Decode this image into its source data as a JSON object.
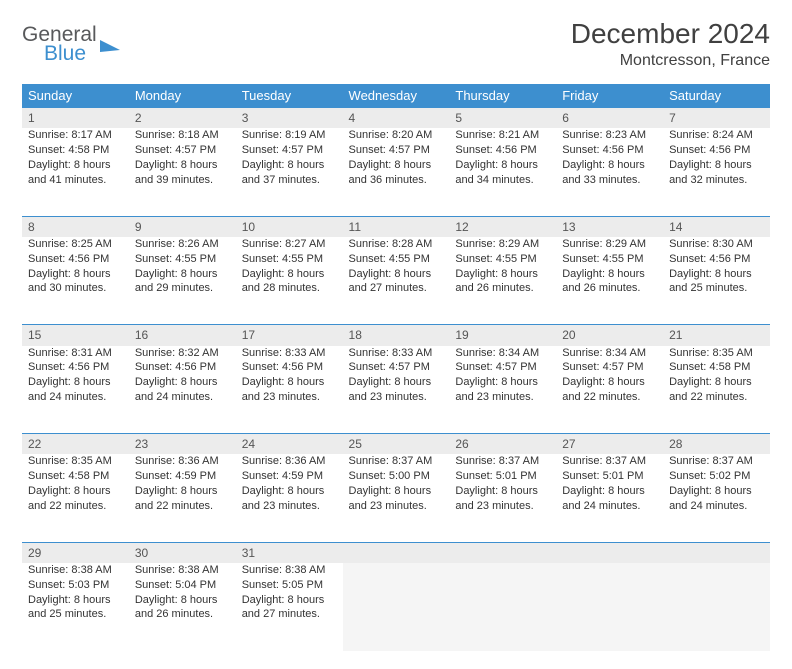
{
  "logo": {
    "text1": "General",
    "text2": "Blue"
  },
  "title": "December 2024",
  "location": "Montcresson, France",
  "header_color": "#3d8fcf",
  "daynum_bg": "#ececec",
  "border_color": "#3d8fcf",
  "weekdays": [
    "Sunday",
    "Monday",
    "Tuesday",
    "Wednesday",
    "Thursday",
    "Friday",
    "Saturday"
  ],
  "weeks": [
    [
      {
        "n": "1",
        "sr": "Sunrise: 8:17 AM",
        "ss": "Sunset: 4:58 PM",
        "d1": "Daylight: 8 hours",
        "d2": "and 41 minutes."
      },
      {
        "n": "2",
        "sr": "Sunrise: 8:18 AM",
        "ss": "Sunset: 4:57 PM",
        "d1": "Daylight: 8 hours",
        "d2": "and 39 minutes."
      },
      {
        "n": "3",
        "sr": "Sunrise: 8:19 AM",
        "ss": "Sunset: 4:57 PM",
        "d1": "Daylight: 8 hours",
        "d2": "and 37 minutes."
      },
      {
        "n": "4",
        "sr": "Sunrise: 8:20 AM",
        "ss": "Sunset: 4:57 PM",
        "d1": "Daylight: 8 hours",
        "d2": "and 36 minutes."
      },
      {
        "n": "5",
        "sr": "Sunrise: 8:21 AM",
        "ss": "Sunset: 4:56 PM",
        "d1": "Daylight: 8 hours",
        "d2": "and 34 minutes."
      },
      {
        "n": "6",
        "sr": "Sunrise: 8:23 AM",
        "ss": "Sunset: 4:56 PM",
        "d1": "Daylight: 8 hours",
        "d2": "and 33 minutes."
      },
      {
        "n": "7",
        "sr": "Sunrise: 8:24 AM",
        "ss": "Sunset: 4:56 PM",
        "d1": "Daylight: 8 hours",
        "d2": "and 32 minutes."
      }
    ],
    [
      {
        "n": "8",
        "sr": "Sunrise: 8:25 AM",
        "ss": "Sunset: 4:56 PM",
        "d1": "Daylight: 8 hours",
        "d2": "and 30 minutes."
      },
      {
        "n": "9",
        "sr": "Sunrise: 8:26 AM",
        "ss": "Sunset: 4:55 PM",
        "d1": "Daylight: 8 hours",
        "d2": "and 29 minutes."
      },
      {
        "n": "10",
        "sr": "Sunrise: 8:27 AM",
        "ss": "Sunset: 4:55 PM",
        "d1": "Daylight: 8 hours",
        "d2": "and 28 minutes."
      },
      {
        "n": "11",
        "sr": "Sunrise: 8:28 AM",
        "ss": "Sunset: 4:55 PM",
        "d1": "Daylight: 8 hours",
        "d2": "and 27 minutes."
      },
      {
        "n": "12",
        "sr": "Sunrise: 8:29 AM",
        "ss": "Sunset: 4:55 PM",
        "d1": "Daylight: 8 hours",
        "d2": "and 26 minutes."
      },
      {
        "n": "13",
        "sr": "Sunrise: 8:29 AM",
        "ss": "Sunset: 4:55 PM",
        "d1": "Daylight: 8 hours",
        "d2": "and 26 minutes."
      },
      {
        "n": "14",
        "sr": "Sunrise: 8:30 AM",
        "ss": "Sunset: 4:56 PM",
        "d1": "Daylight: 8 hours",
        "d2": "and 25 minutes."
      }
    ],
    [
      {
        "n": "15",
        "sr": "Sunrise: 8:31 AM",
        "ss": "Sunset: 4:56 PM",
        "d1": "Daylight: 8 hours",
        "d2": "and 24 minutes."
      },
      {
        "n": "16",
        "sr": "Sunrise: 8:32 AM",
        "ss": "Sunset: 4:56 PM",
        "d1": "Daylight: 8 hours",
        "d2": "and 24 minutes."
      },
      {
        "n": "17",
        "sr": "Sunrise: 8:33 AM",
        "ss": "Sunset: 4:56 PM",
        "d1": "Daylight: 8 hours",
        "d2": "and 23 minutes."
      },
      {
        "n": "18",
        "sr": "Sunrise: 8:33 AM",
        "ss": "Sunset: 4:57 PM",
        "d1": "Daylight: 8 hours",
        "d2": "and 23 minutes."
      },
      {
        "n": "19",
        "sr": "Sunrise: 8:34 AM",
        "ss": "Sunset: 4:57 PM",
        "d1": "Daylight: 8 hours",
        "d2": "and 23 minutes."
      },
      {
        "n": "20",
        "sr": "Sunrise: 8:34 AM",
        "ss": "Sunset: 4:57 PM",
        "d1": "Daylight: 8 hours",
        "d2": "and 22 minutes."
      },
      {
        "n": "21",
        "sr": "Sunrise: 8:35 AM",
        "ss": "Sunset: 4:58 PM",
        "d1": "Daylight: 8 hours",
        "d2": "and 22 minutes."
      }
    ],
    [
      {
        "n": "22",
        "sr": "Sunrise: 8:35 AM",
        "ss": "Sunset: 4:58 PM",
        "d1": "Daylight: 8 hours",
        "d2": "and 22 minutes."
      },
      {
        "n": "23",
        "sr": "Sunrise: 8:36 AM",
        "ss": "Sunset: 4:59 PM",
        "d1": "Daylight: 8 hours",
        "d2": "and 22 minutes."
      },
      {
        "n": "24",
        "sr": "Sunrise: 8:36 AM",
        "ss": "Sunset: 4:59 PM",
        "d1": "Daylight: 8 hours",
        "d2": "and 23 minutes."
      },
      {
        "n": "25",
        "sr": "Sunrise: 8:37 AM",
        "ss": "Sunset: 5:00 PM",
        "d1": "Daylight: 8 hours",
        "d2": "and 23 minutes."
      },
      {
        "n": "26",
        "sr": "Sunrise: 8:37 AM",
        "ss": "Sunset: 5:01 PM",
        "d1": "Daylight: 8 hours",
        "d2": "and 23 minutes."
      },
      {
        "n": "27",
        "sr": "Sunrise: 8:37 AM",
        "ss": "Sunset: 5:01 PM",
        "d1": "Daylight: 8 hours",
        "d2": "and 24 minutes."
      },
      {
        "n": "28",
        "sr": "Sunrise: 8:37 AM",
        "ss": "Sunset: 5:02 PM",
        "d1": "Daylight: 8 hours",
        "d2": "and 24 minutes."
      }
    ],
    [
      {
        "n": "29",
        "sr": "Sunrise: 8:38 AM",
        "ss": "Sunset: 5:03 PM",
        "d1": "Daylight: 8 hours",
        "d2": "and 25 minutes."
      },
      {
        "n": "30",
        "sr": "Sunrise: 8:38 AM",
        "ss": "Sunset: 5:04 PM",
        "d1": "Daylight: 8 hours",
        "d2": "and 26 minutes."
      },
      {
        "n": "31",
        "sr": "Sunrise: 8:38 AM",
        "ss": "Sunset: 5:05 PM",
        "d1": "Daylight: 8 hours",
        "d2": "and 27 minutes."
      },
      null,
      null,
      null,
      null
    ]
  ]
}
